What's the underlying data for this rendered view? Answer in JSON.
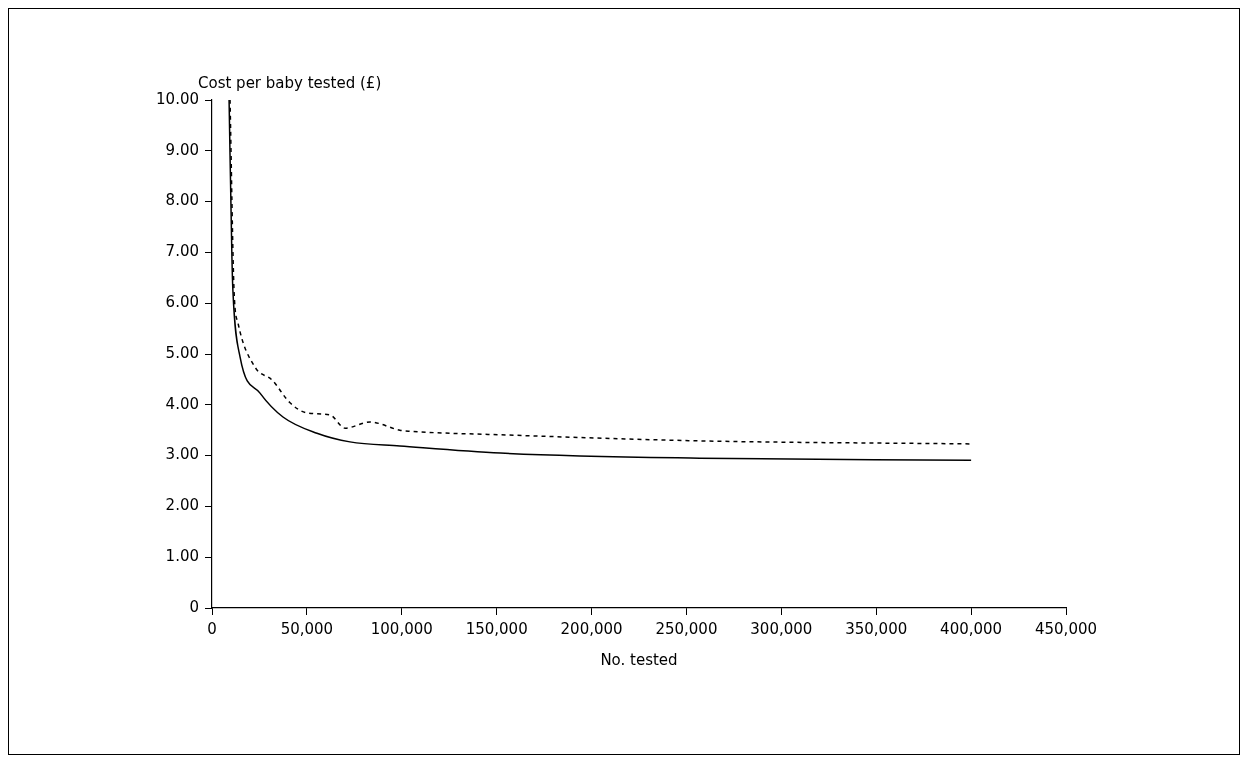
{
  "chart_data": {
    "type": "line",
    "xlabel": "No. tested",
    "ylabel": "Cost per baby tested (£)",
    "xlim": [
      0,
      450000
    ],
    "xticks": [
      0,
      {
        "value": 50000,
        "label": "50,000"
      },
      {
        "value": 100000,
        "label": "100,000"
      },
      {
        "value": 150000,
        "label": "150,000"
      },
      {
        "value": 200000,
        "label": "200,000"
      },
      {
        "value": 250000,
        "label": "250,000"
      },
      {
        "value": 300000,
        "label": "300,000"
      },
      {
        "value": 350000,
        "label": "350,000"
      },
      {
        "value": 400000,
        "label": "400,000"
      },
      {
        "value": 450000,
        "label": "450,000"
      }
    ],
    "ylim": [
      0,
      10
    ],
    "yticks": [
      0,
      {
        "value": 1,
        "label": "1.00"
      },
      {
        "value": 2,
        "label": "2.00"
      },
      {
        "value": 3,
        "label": "3.00"
      },
      {
        "value": 4,
        "label": "4.00"
      },
      {
        "value": 5,
        "label": "5.00"
      },
      {
        "value": 6,
        "label": "6.00"
      },
      {
        "value": 7,
        "label": "7.00"
      },
      {
        "value": 8,
        "label": "8.00"
      },
      {
        "value": 9,
        "label": "9.00"
      },
      {
        "value": 10,
        "label": "10.00"
      }
    ],
    "grid": false,
    "legend": false,
    "marker": "none",
    "series": [
      {
        "color": "#000000",
        "line_style": "solid",
        "x": [
          9000,
          10500,
          11000,
          14800,
          25300,
          37400,
          55300,
          72700,
          99000,
          152000,
          257000,
          400000
        ],
        "values": [
          10,
          6.9,
          6.26,
          4.94,
          4.23,
          3.76,
          3.44,
          3.27,
          3.19,
          3.05,
          2.95,
          2.91
        ]
      },
      {
        "color": "#000000",
        "line_style": "dashed",
        "x": [
          9500,
          11600,
          13700,
          22700,
          31600,
          41100,
          50000,
          62200,
          70100,
          83300,
          99000,
          104000,
          152000,
          257000,
          400000
        ],
        "values": [
          10,
          6.26,
          5.61,
          4.74,
          4.49,
          4.04,
          3.84,
          3.8,
          3.54,
          3.66,
          3.5,
          3.48,
          3.41,
          3.29,
          3.23
        ]
      }
    ]
  }
}
